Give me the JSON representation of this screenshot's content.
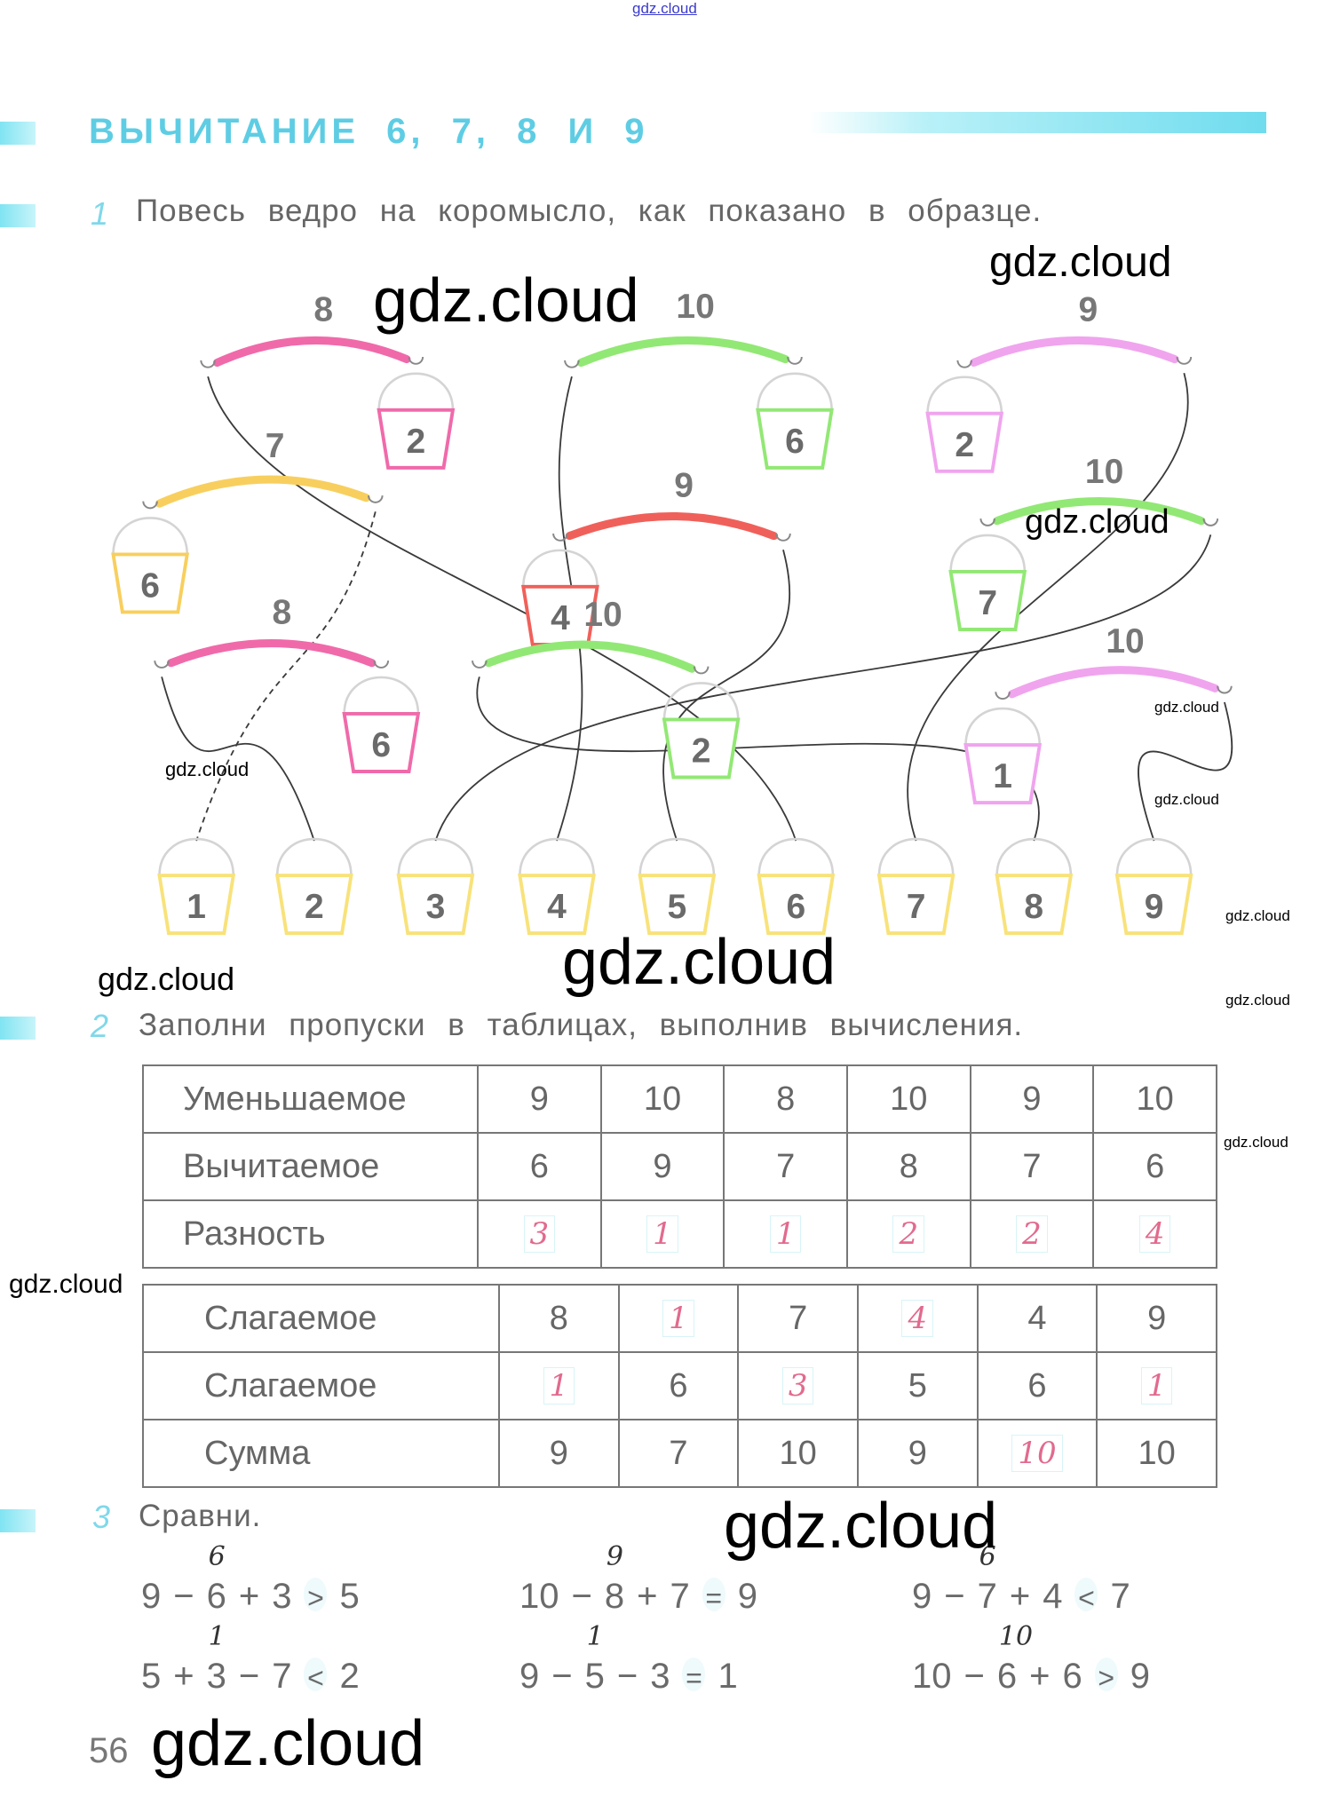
{
  "header_watermark": "gdz.cloud",
  "title": "ВЫЧИТАНИЕ 6, 7, 8 И 9",
  "accent_color": "#5ecde4",
  "task1": {
    "number": "1",
    "text": "Повесь ведро на коромысло, как показано в образце.",
    "yokes": [
      {
        "total": "8",
        "bucket": "2",
        "color": "#f06aaa"
      },
      {
        "total": "10",
        "bucket": "6",
        "color": "#92e874"
      },
      {
        "total": "9",
        "bucket": "2",
        "color": "#f0a4ee"
      },
      {
        "total": "7",
        "bucket": "6",
        "color": "#f8cf5e"
      },
      {
        "total": "9",
        "bucket": "4",
        "color": "#f0605a"
      },
      {
        "total": "10",
        "bucket": "7",
        "color": "#92e874"
      },
      {
        "total": "8",
        "bucket": "6",
        "color": "#f06aaa"
      },
      {
        "total": "10",
        "bucket": "2",
        "color": "#92e874"
      },
      {
        "total": "10",
        "bucket": "1",
        "color": "#f0a4ee"
      }
    ],
    "answer_buckets": [
      "1",
      "2",
      "3",
      "4",
      "5",
      "6",
      "7",
      "8",
      "9"
    ],
    "answer_bucket_color": "#f8e27a"
  },
  "task2": {
    "number": "2",
    "text": "Заполни пропуски в таблицах, выполнив вычисления.",
    "table1": [
      {
        "label": "Уменьшаемое",
        "cells": [
          {
            "v": "9"
          },
          {
            "v": "10"
          },
          {
            "v": "8"
          },
          {
            "v": "10"
          },
          {
            "v": "9"
          },
          {
            "v": "10"
          }
        ]
      },
      {
        "label": "Вычитаемое",
        "cells": [
          {
            "v": "6"
          },
          {
            "v": "9"
          },
          {
            "v": "7"
          },
          {
            "v": "8"
          },
          {
            "v": "7"
          },
          {
            "v": "6"
          }
        ]
      },
      {
        "label": "Разность",
        "cells": [
          {
            "v": "3",
            "hand": true
          },
          {
            "v": "1",
            "hand": true
          },
          {
            "v": "1",
            "hand": true
          },
          {
            "v": "2",
            "hand": true
          },
          {
            "v": "2",
            "hand": true
          },
          {
            "v": "4",
            "hand": true
          }
        ]
      }
    ],
    "table2": [
      {
        "label": "Слагаемое",
        "cells": [
          {
            "v": "8"
          },
          {
            "v": "1",
            "hand": true
          },
          {
            "v": "7"
          },
          {
            "v": "4",
            "hand": true
          },
          {
            "v": "4"
          },
          {
            "v": "9"
          }
        ]
      },
      {
        "label": "Слагаемое",
        "cells": [
          {
            "v": "1",
            "hand": true
          },
          {
            "v": "6"
          },
          {
            "v": "3",
            "hand": true
          },
          {
            "v": "5"
          },
          {
            "v": "6"
          },
          {
            "v": "1",
            "hand": true
          }
        ]
      },
      {
        "label": "Сумма",
        "cells": [
          {
            "v": "9"
          },
          {
            "v": "7"
          },
          {
            "v": "10"
          },
          {
            "v": "9"
          },
          {
            "v": "10",
            "hand": true
          },
          {
            "v": "10"
          }
        ]
      }
    ],
    "handwriting_color": "#e26a8e"
  },
  "task3": {
    "number": "3",
    "text": "Сравни.",
    "expressions": [
      {
        "a": "9",
        "op1": "−",
        "b": "6",
        "op2": "+",
        "c": "3",
        "sign": ">",
        "rhs": "5",
        "note": "6"
      },
      {
        "a": "5",
        "op1": "+",
        "b": "3",
        "op2": "−",
        "c": "7",
        "sign": "<",
        "rhs": "2",
        "note": "1"
      },
      {
        "a": "10",
        "op1": "−",
        "b": "8",
        "op2": "+",
        "c": "7",
        "sign": "=",
        "rhs": "9",
        "note": "9"
      },
      {
        "a": "9",
        "op1": "−",
        "b": "5",
        "op2": "−",
        "c": "3",
        "sign": "=",
        "rhs": "1",
        "note": "1"
      },
      {
        "a": "9",
        "op1": "−",
        "b": "7",
        "op2": "+",
        "c": "4",
        "sign": "<",
        "rhs": "7",
        "note": "6"
      },
      {
        "a": "10",
        "op1": "−",
        "b": "6",
        "op2": "+",
        "c": "6",
        "sign": ">",
        "rhs": "9",
        "note": "10"
      }
    ]
  },
  "page_number": "56",
  "watermarks": [
    "gdz.cloud",
    "gdz.cloud",
    "gdz.cloud",
    "gdz.cloud",
    "gdz.cloud",
    "gdz.cloud",
    "gdz.cloud",
    "gdz.cloud",
    "gdz.cloud",
    "gdz.cloud",
    "gdz.cloud",
    "gdz.cloud",
    "gdz.cloud",
    "gdz.cloud"
  ]
}
